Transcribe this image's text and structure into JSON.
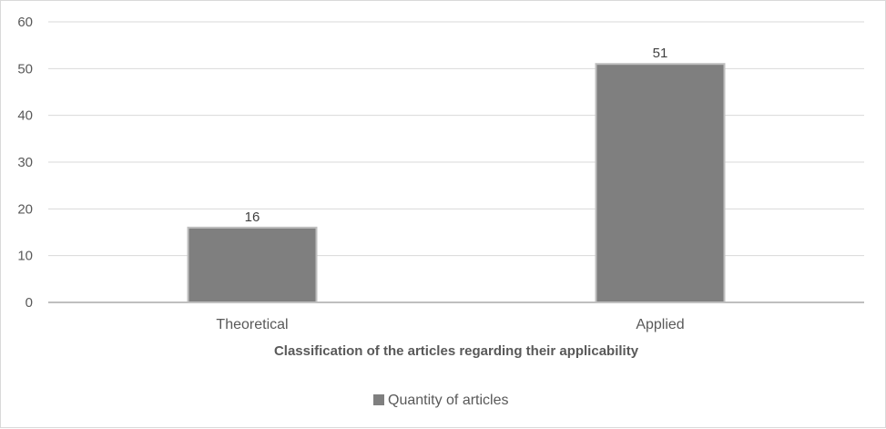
{
  "chart_data": {
    "type": "bar",
    "title": "",
    "xlabel": "Classification of the articles regarding their applicability",
    "ylabel": "",
    "categories": [
      "Theoretical",
      "Applied"
    ],
    "series": [
      {
        "name": "Quantity of articles",
        "values": [
          16,
          51
        ],
        "color": "#7f7f7f"
      }
    ],
    "ylim": [
      0,
      60
    ],
    "yticks": [
      0,
      10,
      20,
      30,
      40,
      50,
      60
    ],
    "data_labels": [
      "16",
      "51"
    ],
    "grid": true,
    "legend_position": "bottom",
    "colors": {
      "bar_fill": "#7f7f7f",
      "bar_stroke": "#bfbfbf",
      "gridline": "#d9d9d9",
      "axis_line": "#bfbfbf",
      "text": "#595959"
    }
  }
}
